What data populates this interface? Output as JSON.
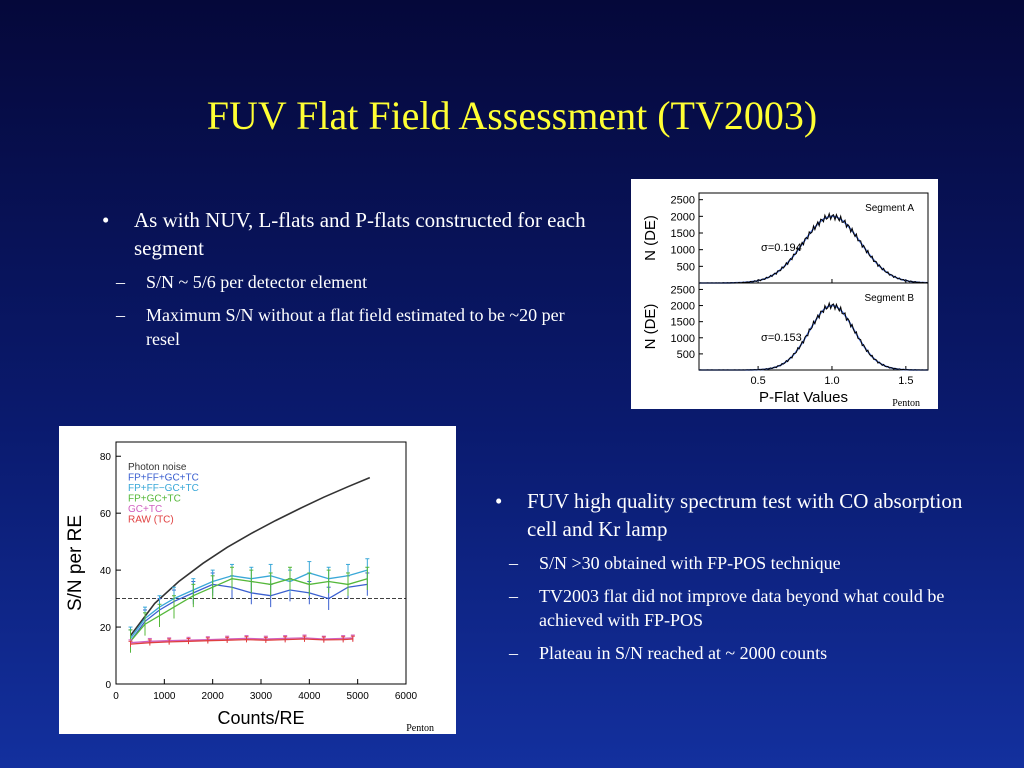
{
  "slide": {
    "title": "FUV Flat Field Assessment (TV2003)",
    "bullet_marker": "•",
    "sub_marker": "–"
  },
  "bullets_top": {
    "main": "As with NUV, L-flats and P-flats constructed for each segment",
    "subs": [
      "S/N ~ 5/6 per detector element",
      "Maximum S/N without a flat field estimated to be ~20 per resel"
    ]
  },
  "bullets_bottom": {
    "main": "FUV high quality spectrum test with CO absorption cell and Kr lamp",
    "subs": [
      "S/N >30 obtained with FP-POS technique",
      "TV2003 flat did not improve data beyond what could be achieved with FP-POS",
      "Plateau in S/N reached at ~ 2000 counts"
    ]
  },
  "credits": {
    "fig1": "Penton",
    "fig2": "Penton"
  },
  "chart_data": [
    {
      "type": "line",
      "panels": [
        {
          "label": "Segment A",
          "annotation": "σ=0.194",
          "sigma": 0.194
        },
        {
          "label": "Segment B",
          "annotation": "σ=0.153",
          "sigma": 0.153
        }
      ],
      "xlabel": "P-Flat Values",
      "ylabel": "N (DE)",
      "xlim": [
        0.1,
        1.65
      ],
      "ylim": [
        0,
        2700
      ],
      "xticks": [
        "0.5",
        "1.0",
        "1.5"
      ],
      "yticks": [
        "500",
        "1000",
        "1500",
        "2000",
        "2500"
      ],
      "peak": 2000,
      "center": 1.0,
      "colors": {
        "data": "#000000",
        "fit": "#4a6fd6"
      }
    },
    {
      "type": "line",
      "xlabel": "Counts/RE",
      "ylabel": "S/N per RE",
      "xlim": [
        0,
        6000
      ],
      "ylim": [
        0,
        85
      ],
      "xticks": [
        "0",
        "1000",
        "2000",
        "3000",
        "4000",
        "5000",
        "6000"
      ],
      "yticks": [
        "0",
        "20",
        "40",
        "60",
        "80"
      ],
      "reference_line": 30,
      "legend": [
        {
          "name": "Photon noise",
          "color": "#333333"
        },
        {
          "name": "FP+FF+GC+TC",
          "color": "#3a5fd0"
        },
        {
          "name": "FP+FF−GC+TC",
          "color": "#3aa8d8"
        },
        {
          "name": "FP+GC+TC",
          "color": "#55b83a"
        },
        {
          "name": "GC+TC",
          "color": "#d060c0"
        },
        {
          "name": "RAW (TC)",
          "color": "#e04040"
        }
      ],
      "series": [
        {
          "name": "Photon noise",
          "color": "#333333",
          "x": [
            300,
            800,
            1300,
            1800,
            2300,
            2800,
            3300,
            3800,
            4300,
            4800,
            5250
          ],
          "y": [
            17,
            28.3,
            36,
            42.4,
            48,
            52.9,
            57.4,
            61.6,
            65.6,
            69.3,
            72.5
          ]
        },
        {
          "name": "FP+FF+GC+TC",
          "color": "#3a5fd0",
          "x": [
            300,
            600,
            900,
            1200,
            1600,
            2000,
            2400,
            2800,
            3200,
            3600,
            4000,
            4400,
            4800,
            5200
          ],
          "y": [
            15,
            22,
            26,
            29,
            32,
            35,
            34,
            32,
            31,
            33,
            32,
            30,
            34,
            35
          ]
        },
        {
          "name": "FP+FF−GC+TC",
          "color": "#3aa8d8",
          "x": [
            300,
            600,
            900,
            1200,
            1600,
            2000,
            2400,
            2800,
            3200,
            3600,
            4000,
            4400,
            4800,
            5200
          ],
          "y": [
            16,
            23,
            27,
            30,
            33,
            36,
            38,
            37,
            38,
            36,
            39,
            37,
            38,
            40
          ]
        },
        {
          "name": "FP+GC+TC",
          "color": "#55b83a",
          "x": [
            300,
            600,
            900,
            1200,
            1600,
            2000,
            2400,
            2800,
            3200,
            3600,
            4000,
            4400,
            4800,
            5200
          ],
          "y": [
            15,
            21,
            24,
            27,
            31,
            34,
            37,
            36,
            35,
            37,
            35,
            36,
            35,
            37
          ]
        },
        {
          "name": "GC+TC",
          "color": "#d060c0",
          "x": [
            300,
            700,
            1100,
            1500,
            1900,
            2300,
            2700,
            3100,
            3500,
            3900,
            4300,
            4700,
            4900
          ],
          "y": [
            14.5,
            15,
            15.2,
            15.4,
            15.6,
            15.8,
            16,
            15.8,
            16,
            16.2,
            15.8,
            16,
            16.2
          ]
        },
        {
          "name": "RAW (TC)",
          "color": "#e04040",
          "x": [
            300,
            700,
            1100,
            1500,
            1900,
            2300,
            2700,
            3100,
            3500,
            3900,
            4300,
            4700,
            4900
          ],
          "y": [
            14,
            14.5,
            14.8,
            15,
            15.2,
            15.4,
            15.6,
            15.4,
            15.6,
            15.8,
            15.5,
            15.6,
            15.8
          ]
        }
      ]
    }
  ]
}
